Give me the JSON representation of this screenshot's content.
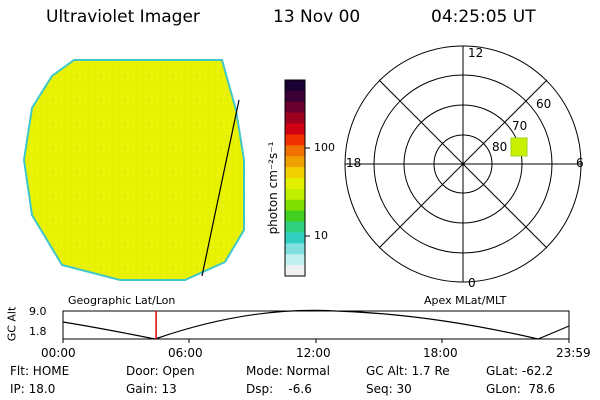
{
  "header": {
    "instrument": "Ultraviolet Imager",
    "date": "13 Nov 00",
    "time": "04:25:05 UT"
  },
  "colorbar": {
    "axis_label": "photon cm⁻²s⁻¹",
    "tick_high": "100",
    "tick_low": "10",
    "colors": [
      "#1a0033",
      "#3a0033",
      "#6a0030",
      "#a00020",
      "#d00010",
      "#f03000",
      "#f07000",
      "#f0a000",
      "#f0d000",
      "#e0f000",
      "#c0f000",
      "#80e000",
      "#40d020",
      "#30d080",
      "#30d0c0",
      "#80e0e0",
      "#c0f0f0",
      "#f0f0f0"
    ]
  },
  "polar_plot": {
    "labels": {
      "top": "12",
      "bottom": "0",
      "left": "18",
      "right": "6"
    },
    "rings": [
      "60",
      "70",
      "80"
    ]
  },
  "map_labels": {
    "left": "Geographic Lat/Lon",
    "right": "Apex MLat/MLT"
  },
  "orbit": {
    "axis_label": "GC Alt",
    "y_top": "9.0",
    "y_bottom": "1.8",
    "x_ticks": [
      "00:00",
      "06:00",
      "12:00",
      "18:00",
      "23:59"
    ],
    "current_time_fraction": 0.184
  },
  "status": {
    "flt": "Flt: HOME",
    "ip": "IP: 18.0",
    "door": "Door: Open",
    "gain": "Gain: 13",
    "mode": "Mode: Normal",
    "dsp": "Dsp:    -6.6",
    "gc_alt": "GC Alt: 1.7 Re",
    "seq": "Seq: 30",
    "glat": "GLat: -62.2",
    "glon": "GLon:  78.6"
  }
}
